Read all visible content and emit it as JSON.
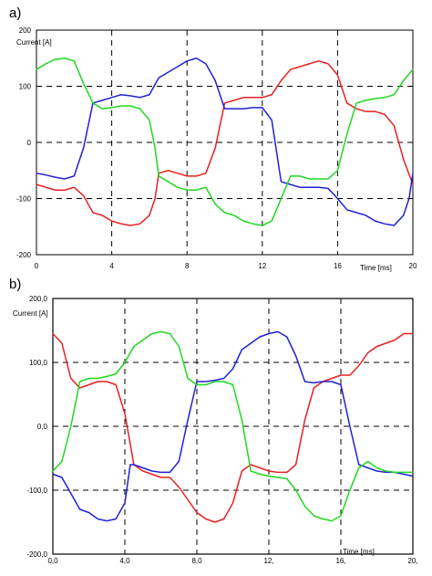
{
  "chart_data": [
    {
      "type": "line",
      "panel_label": "a)",
      "ylabel": "Current [A]",
      "xlabel": "Time [ms]",
      "xlim": [
        0,
        20
      ],
      "ylim": [
        -200,
        200
      ],
      "x_ticks": [
        0,
        4,
        8,
        12,
        16,
        20
      ],
      "x_tick_labels": [
        "0",
        "4",
        "8",
        "12",
        "16",
        "20"
      ],
      "y_ticks": [
        200,
        100,
        0,
        -100,
        -200
      ],
      "y_tick_labels": [
        "200",
        "100",
        "0",
        "-100",
        "-200"
      ],
      "grid": "dashed",
      "colors": [
        "#e82020",
        "#2020d8",
        "#20d820"
      ],
      "series": [
        {
          "color": "#e82020",
          "x": [
            0,
            0.5,
            1,
            1.5,
            2,
            2.5,
            3,
            3.5,
            4,
            4.5,
            5,
            5.5,
            6,
            6.3,
            6.5,
            7,
            7.5,
            8,
            8.5,
            9,
            9.5,
            10,
            10.5,
            11,
            11.5,
            12,
            12.5,
            13,
            13.5,
            14,
            14.5,
            15,
            15.5,
            16,
            16.5,
            17,
            17.5,
            18,
            18.5,
            19,
            19.5,
            20
          ],
          "y": [
            -75,
            -80,
            -85,
            -85,
            -80,
            -95,
            -125,
            -130,
            -140,
            -145,
            -148,
            -145,
            -130,
            -100,
            -55,
            -50,
            -55,
            -60,
            -60,
            -55,
            -10,
            70,
            75,
            80,
            80,
            80,
            85,
            110,
            130,
            135,
            140,
            145,
            140,
            120,
            70,
            60,
            55,
            55,
            50,
            30,
            -30,
            -75
          ]
        },
        {
          "color": "#2020d8",
          "x": [
            0,
            0.5,
            1,
            1.5,
            2,
            2.5,
            3,
            3.5,
            4,
            4.5,
            5,
            5.5,
            6,
            6.5,
            7,
            7.5,
            8,
            8.5,
            9,
            9.5,
            10,
            10.5,
            11,
            11.5,
            12,
            12.5,
            13,
            13.5,
            14,
            14.5,
            15,
            15.5,
            16,
            16.5,
            17,
            17.5,
            18,
            18.5,
            19,
            19.5,
            19.8,
            20
          ],
          "y": [
            -55,
            -58,
            -62,
            -65,
            -60,
            -10,
            70,
            75,
            80,
            85,
            83,
            80,
            85,
            115,
            125,
            135,
            145,
            150,
            140,
            110,
            60,
            60,
            60,
            62,
            62,
            40,
            -70,
            -75,
            -80,
            -80,
            -80,
            -82,
            -100,
            -120,
            -125,
            -130,
            -140,
            -145,
            -148,
            -130,
            -100,
            -55
          ]
        },
        {
          "color": "#20d820",
          "x": [
            0,
            0.5,
            1,
            1.5,
            2,
            2.5,
            3,
            3.5,
            4,
            4.5,
            5,
            5.5,
            6,
            6.3,
            6.5,
            7,
            7.5,
            8,
            8.5,
            9,
            9.5,
            10,
            10.5,
            11,
            11.5,
            12,
            12.5,
            13,
            13.5,
            14,
            14.5,
            15,
            15.5,
            16,
            16.5,
            17,
            17.5,
            18,
            18.5,
            19,
            19.5,
            20
          ],
          "y": [
            130,
            140,
            148,
            150,
            145,
            105,
            70,
            60,
            62,
            65,
            65,
            60,
            40,
            -10,
            -60,
            -70,
            -80,
            -85,
            -85,
            -80,
            -110,
            -125,
            -130,
            -140,
            -145,
            -148,
            -140,
            -100,
            -60,
            -60,
            -65,
            -65,
            -65,
            -50,
            15,
            70,
            75,
            78,
            80,
            85,
            110,
            130
          ]
        }
      ]
    },
    {
      "type": "line",
      "panel_label": "b)",
      "ylabel": "Current [A]",
      "xlabel": "Time [ms]",
      "xlim": [
        0,
        20
      ],
      "ylim": [
        -200,
        200
      ],
      "x_ticks": [
        0,
        4,
        8,
        12,
        16,
        20
      ],
      "x_tick_labels": [
        "0,0",
        "4,0",
        "8,0",
        "12,",
        "16,",
        "20,"
      ],
      "y_ticks": [
        200,
        100,
        0,
        -100,
        -200
      ],
      "y_tick_labels": [
        "200,0",
        "100,0",
        "0,0",
        "-100,0",
        "-200,0"
      ],
      "grid": "dashed",
      "colors": [
        "#e82020",
        "#2020d8",
        "#20d820"
      ],
      "series": [
        {
          "color": "#e82020",
          "x": [
            0,
            0.5,
            1,
            1.5,
            2,
            2.5,
            3,
            3.5,
            4,
            4.5,
            5,
            5.5,
            6,
            6.5,
            7,
            7.5,
            8,
            8.5,
            9,
            9.5,
            10,
            10.5,
            11,
            11.5,
            12,
            12.5,
            13,
            13.5,
            14,
            14.5,
            15,
            15.5,
            16,
            16.5,
            17,
            17.5,
            18,
            18.5,
            19,
            19.5,
            20
          ],
          "y": [
            145,
            130,
            75,
            60,
            65,
            70,
            70,
            65,
            20,
            -60,
            -70,
            -75,
            -80,
            -80,
            -95,
            -115,
            -135,
            -145,
            -150,
            -145,
            -120,
            -70,
            -60,
            -65,
            -70,
            -72,
            -72,
            -60,
            10,
            60,
            70,
            75,
            80,
            80,
            95,
            115,
            125,
            130,
            135,
            145,
            145
          ]
        },
        {
          "color": "#2020d8",
          "x": [
            0,
            0.5,
            1,
            1.5,
            2,
            2.5,
            3,
            3.5,
            4,
            4.3,
            4.5,
            5,
            5.5,
            6,
            6.5,
            7,
            7.5,
            8,
            8.5,
            9,
            9.5,
            10,
            10.5,
            11,
            11.5,
            12,
            12.5,
            13,
            13.5,
            14,
            14.5,
            15,
            15.5,
            16,
            16.5,
            17,
            17.5,
            18,
            18.5,
            19,
            19.5,
            20
          ],
          "y": [
            -75,
            -80,
            -105,
            -130,
            -135,
            -145,
            -148,
            -145,
            -120,
            -60,
            -60,
            -65,
            -70,
            -72,
            -72,
            -55,
            10,
            70,
            70,
            72,
            75,
            90,
            120,
            130,
            140,
            145,
            148,
            140,
            110,
            70,
            68,
            70,
            70,
            65,
            0,
            -60,
            -65,
            -70,
            -72,
            -72,
            -75,
            -78
          ]
        },
        {
          "color": "#20d820",
          "x": [
            0,
            0.5,
            1,
            1.5,
            2,
            2.5,
            3,
            3.5,
            4,
            4.5,
            5,
            5.5,
            6,
            6.5,
            7,
            7.5,
            8,
            8.5,
            9,
            9.5,
            10,
            10.5,
            11,
            11.5,
            12,
            12.5,
            13,
            13.5,
            14,
            14.5,
            15,
            15.5,
            16,
            16.5,
            17,
            17.5,
            18,
            18.5,
            19,
            19.5,
            20
          ],
          "y": [
            -70,
            -55,
            0,
            70,
            75,
            75,
            78,
            82,
            100,
            125,
            135,
            145,
            148,
            145,
            125,
            75,
            65,
            65,
            70,
            70,
            65,
            10,
            -70,
            -75,
            -78,
            -80,
            -82,
            -100,
            -125,
            -140,
            -145,
            -148,
            -140,
            -100,
            -65,
            -55,
            -65,
            -70,
            -72,
            -72,
            -72
          ]
        }
      ]
    }
  ]
}
